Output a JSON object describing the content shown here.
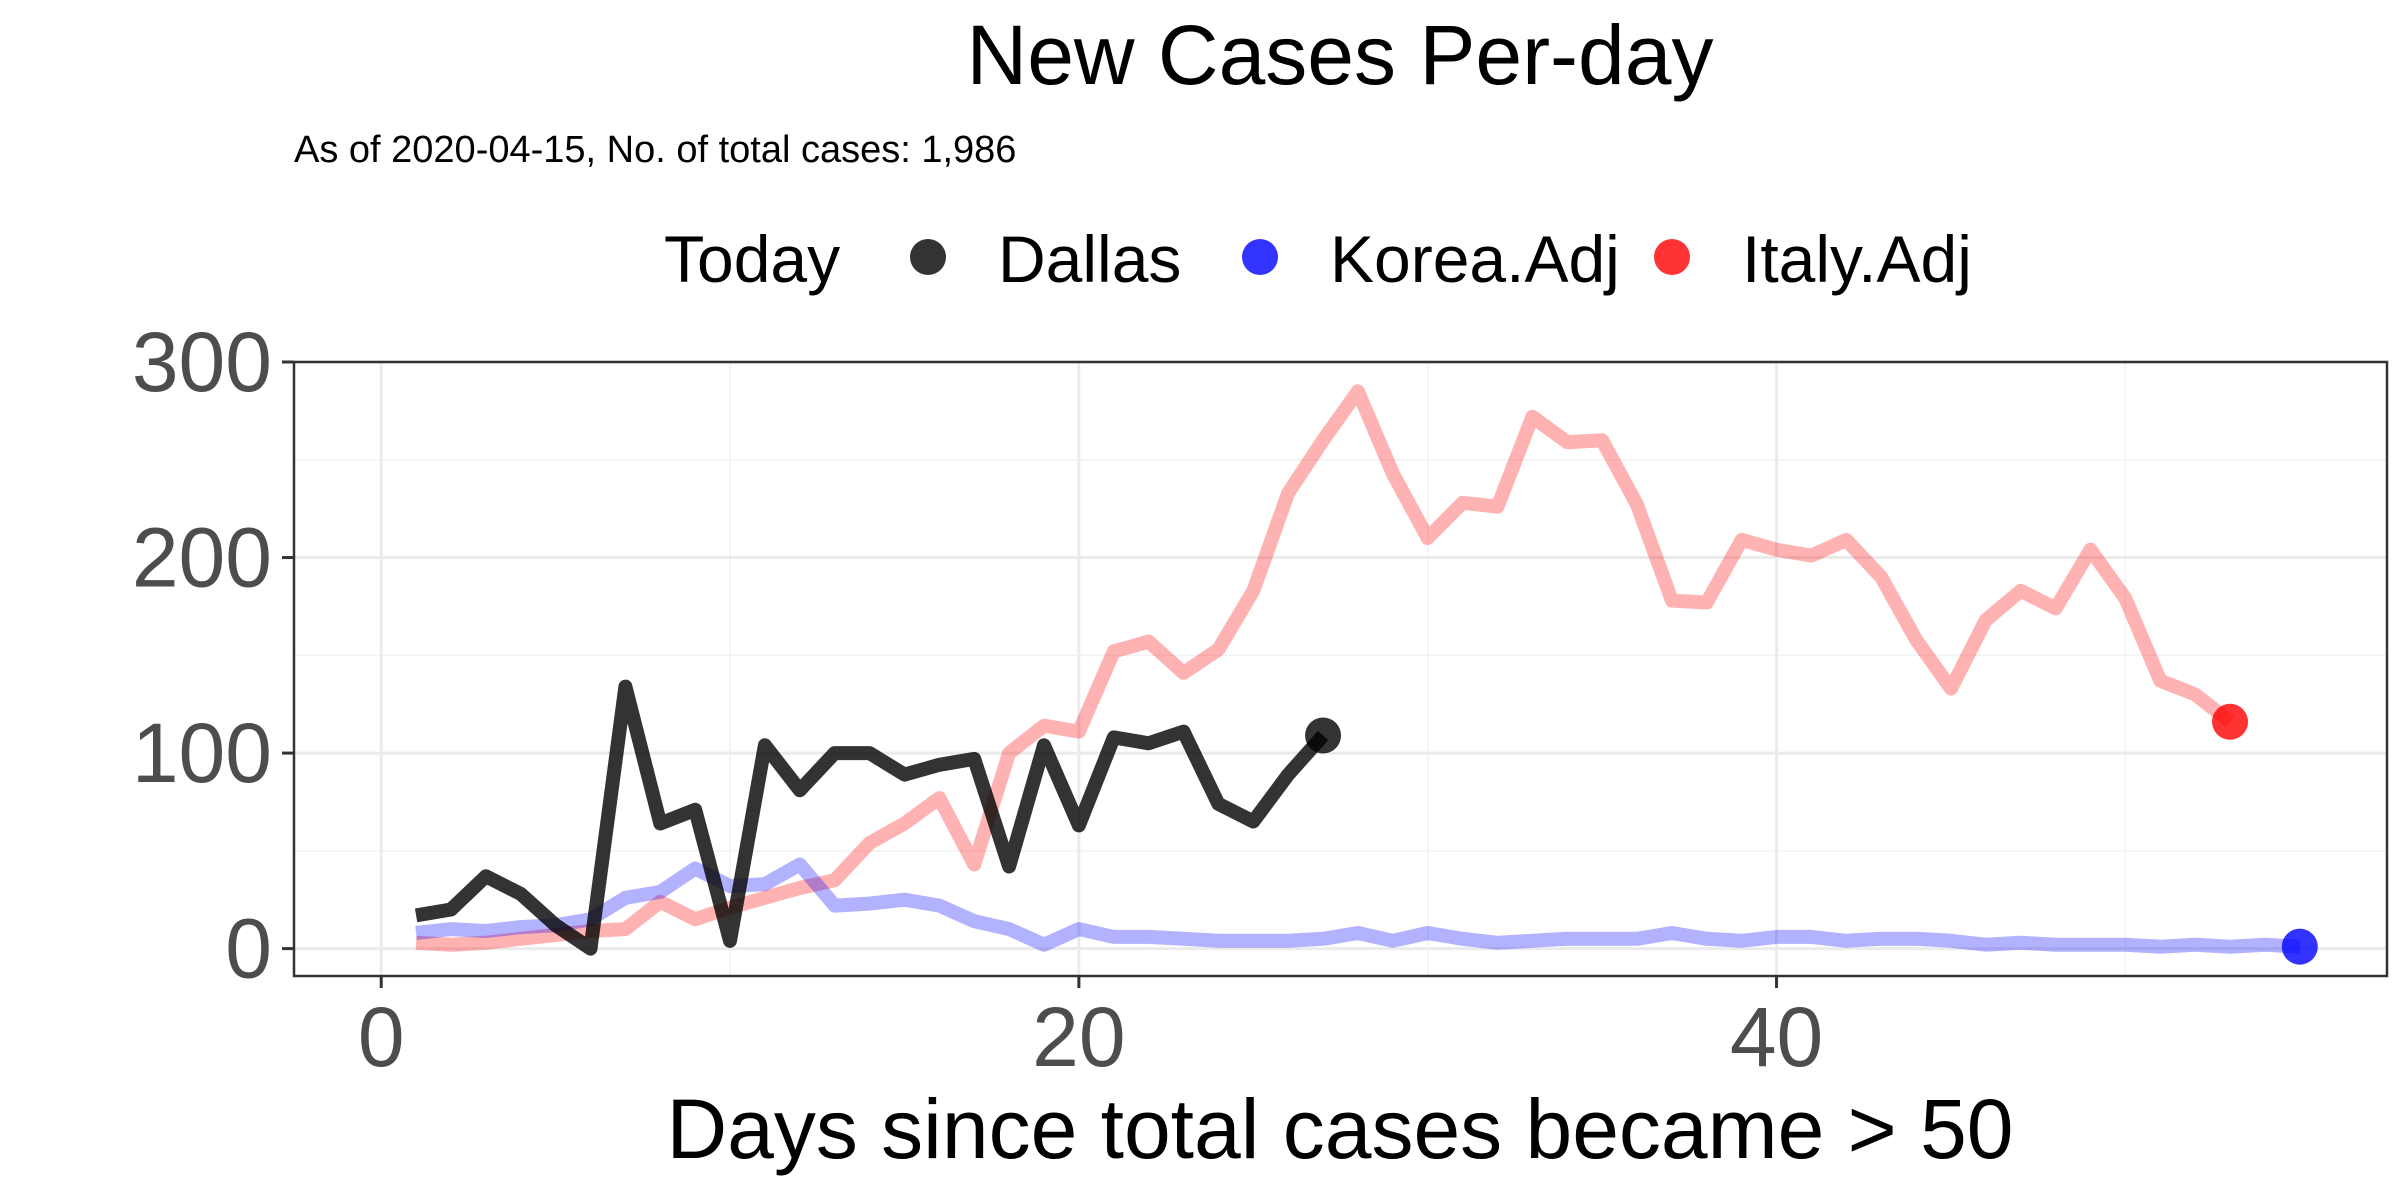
{
  "chart_data": {
    "type": "line",
    "title": "New Cases Per-day",
    "subtitle": "As of 2020-04-15, No. of total cases: 1,986",
    "xlabel": "Days since total cases became > 50",
    "ylabel": "",
    "xlim": [
      -2.5,
      57.5
    ],
    "ylim": [
      -14,
      300
    ],
    "x_ticks": [
      0,
      20,
      40
    ],
    "y_ticks": [
      0,
      100,
      200,
      300
    ],
    "grid": true,
    "legend": {
      "title": "Today",
      "position": "top",
      "entries": [
        "Dallas",
        "Korea.Adj",
        "Italy.Adj"
      ]
    },
    "series": [
      {
        "name": "Dallas",
        "color": "#000000",
        "x": [
          1,
          2,
          3,
          4,
          5,
          6,
          7,
          8,
          9,
          10,
          11,
          12,
          13,
          14,
          15,
          16,
          17,
          18,
          19,
          20,
          21,
          22,
          23,
          24,
          25,
          26,
          27
        ],
        "y": [
          17,
          20,
          37,
          28,
          12,
          0,
          134,
          64,
          71,
          4,
          104,
          81,
          100,
          100,
          89,
          94,
          97,
          42,
          104,
          63,
          108,
          105,
          111,
          74,
          65,
          89,
          109
        ]
      },
      {
        "name": "Korea.Adj",
        "color": "#0000ff",
        "x": [
          1,
          2,
          3,
          4,
          5,
          6,
          7,
          8,
          9,
          10,
          11,
          12,
          13,
          14,
          15,
          16,
          17,
          18,
          19,
          20,
          21,
          22,
          23,
          24,
          25,
          26,
          27,
          28,
          29,
          30,
          31,
          32,
          33,
          34,
          35,
          36,
          37,
          38,
          39,
          40,
          41,
          42,
          43,
          44,
          45,
          46,
          47,
          48,
          49,
          50,
          51,
          52,
          53,
          54,
          55
        ],
        "y": [
          8,
          10,
          9,
          11,
          12,
          15,
          26,
          29,
          41,
          32,
          33,
          43,
          22,
          23,
          25,
          22,
          14,
          10,
          2,
          10,
          6,
          6,
          5,
          4,
          4,
          4,
          5,
          8,
          4,
          8,
          5,
          3,
          4,
          5,
          5,
          5,
          8,
          5,
          4,
          6,
          6,
          4,
          5,
          5,
          4,
          2,
          3,
          2,
          2,
          2,
          1,
          2,
          1,
          2,
          1
        ]
      },
      {
        "name": "Italy.Adj",
        "color": "#ff0000",
        "x": [
          1,
          2,
          3,
          4,
          5,
          6,
          7,
          8,
          9,
          10,
          11,
          12,
          13,
          14,
          15,
          16,
          17,
          18,
          19,
          20,
          21,
          22,
          23,
          24,
          25,
          26,
          27,
          28,
          29,
          30,
          31,
          32,
          33,
          34,
          35,
          36,
          37,
          38,
          39,
          40,
          41,
          42,
          43,
          44,
          45,
          46,
          47,
          48,
          49,
          50,
          51,
          52,
          53
        ],
        "y": [
          3,
          2,
          3,
          5,
          7,
          9,
          10,
          24,
          15,
          21,
          26,
          31,
          35,
          54,
          64,
          77,
          43,
          100,
          114,
          111,
          152,
          157,
          141,
          153,
          183,
          233,
          260,
          285,
          243,
          210,
          228,
          226,
          272,
          259,
          260,
          227,
          178,
          177,
          209,
          204,
          201,
          209,
          190,
          158,
          133,
          168,
          183,
          174,
          204,
          179,
          137,
          130,
          116
        ]
      }
    ]
  }
}
